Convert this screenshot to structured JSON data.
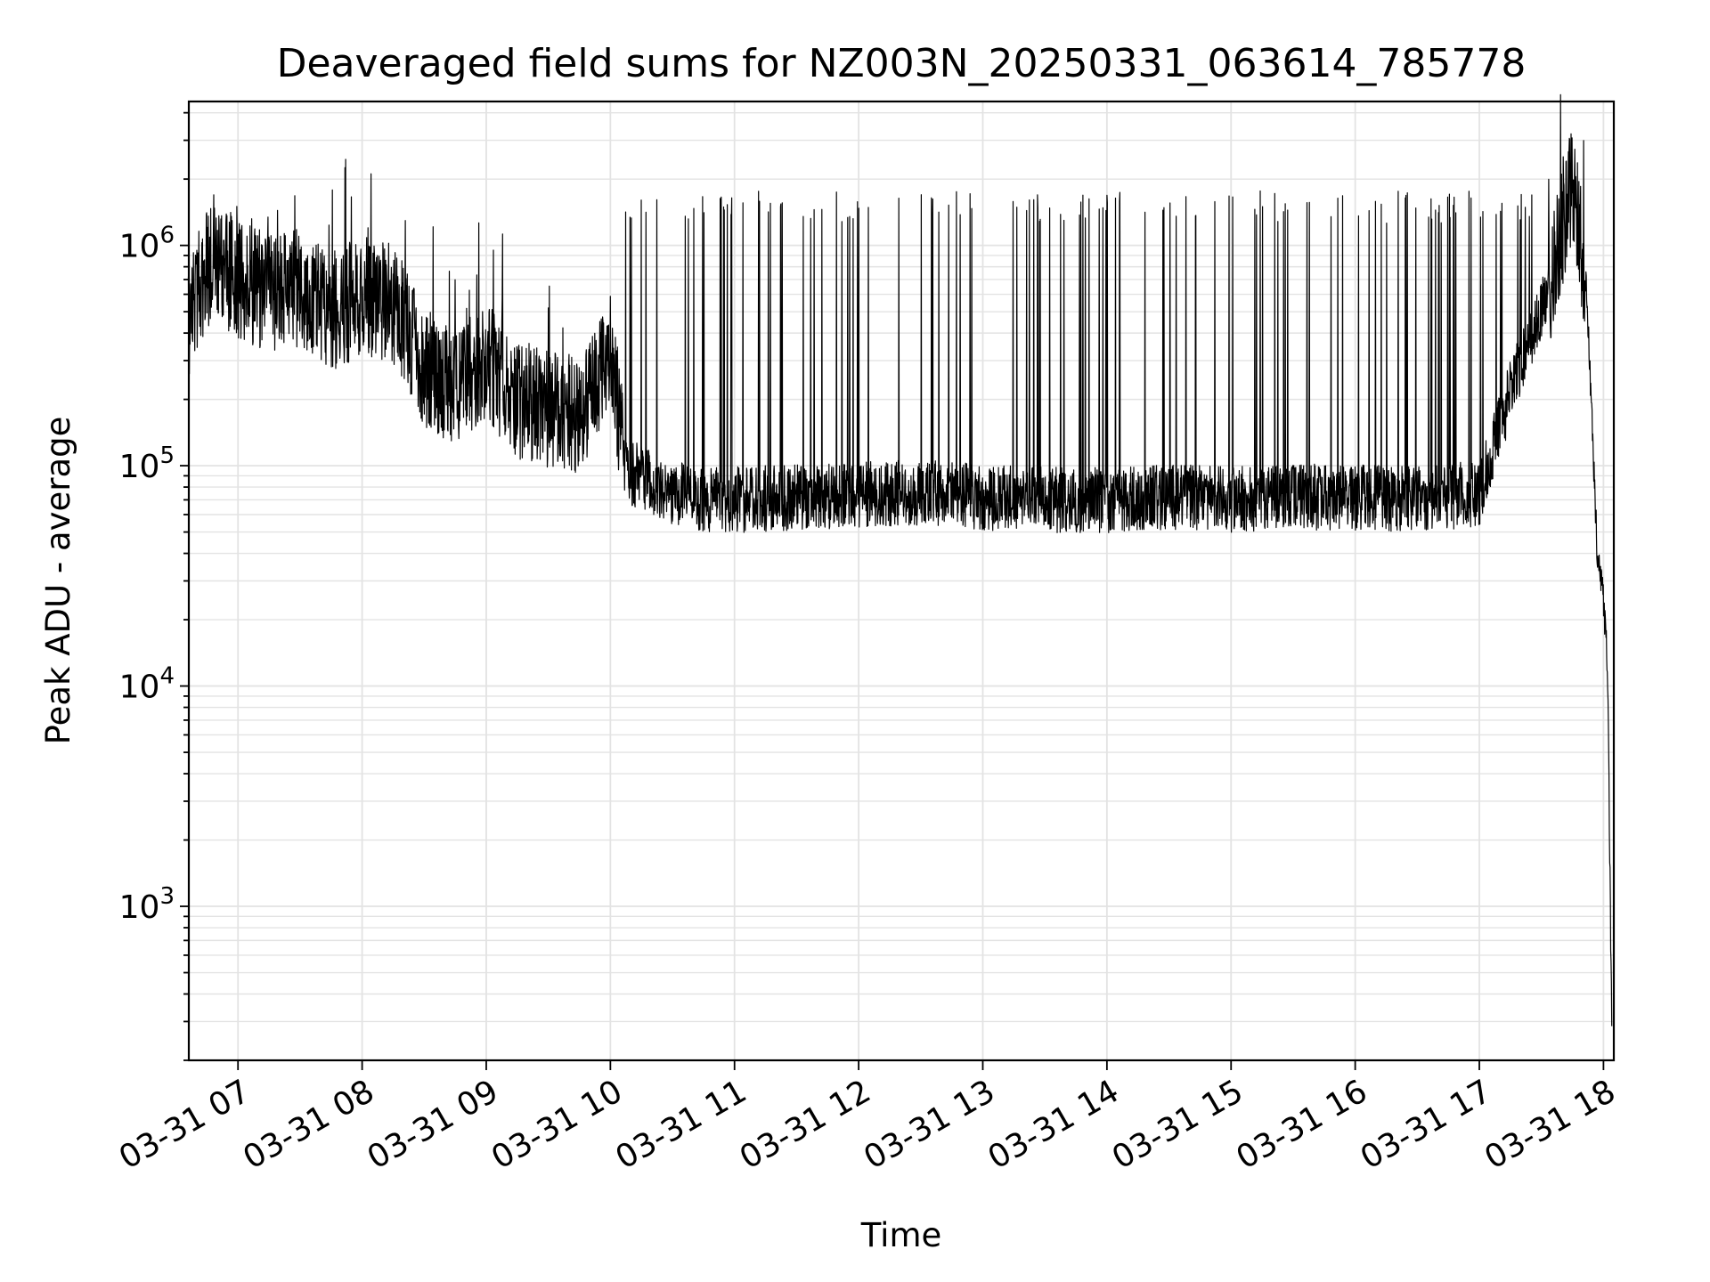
{
  "chart_data": {
    "type": "line",
    "title": "Deaveraged field sums for NZ003N_20250331_063614_785778",
    "xlabel": "Time",
    "ylabel": "Peak ADU - average",
    "x_range": [
      "2025-03-31T06:36:14",
      "2025-03-31T18:05:00"
    ],
    "y_scale": "log",
    "ylim": [
      200,
      4500000
    ],
    "grid": {
      "major": true,
      "minor_y": true
    },
    "legend": "none",
    "line_color": "#000000",
    "x_ticks": [
      {
        "value": "2025-03-31T07:00",
        "label": "03-31 07"
      },
      {
        "value": "2025-03-31T08:00",
        "label": "03-31 08"
      },
      {
        "value": "2025-03-31T09:00",
        "label": "03-31 09"
      },
      {
        "value": "2025-03-31T10:00",
        "label": "03-31 10"
      },
      {
        "value": "2025-03-31T11:00",
        "label": "03-31 11"
      },
      {
        "value": "2025-03-31T12:00",
        "label": "03-31 12"
      },
      {
        "value": "2025-03-31T13:00",
        "label": "03-31 13"
      },
      {
        "value": "2025-03-31T14:00",
        "label": "03-31 14"
      },
      {
        "value": "2025-03-31T15:00",
        "label": "03-31 15"
      },
      {
        "value": "2025-03-31T16:00",
        "label": "03-31 16"
      },
      {
        "value": "2025-03-31T17:00",
        "label": "03-31 17"
      },
      {
        "value": "2025-03-31T18:00",
        "label": "03-31 18"
      }
    ],
    "y_ticks": [
      {
        "value": 1000,
        "base": "10",
        "exp": "3"
      },
      {
        "value": 10000,
        "base": "10",
        "exp": "4"
      },
      {
        "value": 100000,
        "base": "10",
        "exp": "5"
      },
      {
        "value": 1000000,
        "base": "10",
        "exp": "6"
      }
    ],
    "series": [
      {
        "x": [
          "2025-03-31T06:36",
          "2025-03-31T06:40",
          "2025-03-31T06:48",
          "2025-03-31T07:00",
          "2025-03-31T07:15",
          "2025-03-31T07:30",
          "2025-03-31T07:45",
          "2025-03-31T08:00",
          "2025-03-31T08:15",
          "2025-03-31T08:30",
          "2025-03-31T08:45",
          "2025-03-31T09:00",
          "2025-03-31T09:15",
          "2025-03-31T09:30",
          "2025-03-31T09:45",
          "2025-03-31T10:00",
          "2025-03-31T10:08",
          "2025-03-31T10:15",
          "2025-03-31T10:30",
          "2025-03-31T10:45",
          "2025-03-31T11:00",
          "2025-03-31T11:30",
          "2025-03-31T12:00",
          "2025-03-31T12:30",
          "2025-03-31T13:00",
          "2025-03-31T13:30",
          "2025-03-31T14:00",
          "2025-03-31T14:30",
          "2025-03-31T15:00",
          "2025-03-31T15:30",
          "2025-03-31T16:00",
          "2025-03-31T16:30",
          "2025-03-31T17:00",
          "2025-03-31T17:20",
          "2025-03-31T17:35",
          "2025-03-31T17:45",
          "2025-03-31T17:52",
          "2025-03-31T17:57",
          "2025-03-31T18:00",
          "2025-03-31T18:02",
          "2025-03-31T18:04"
        ],
        "y": [
          450000,
          600000,
          900000,
          700000,
          600000,
          650000,
          500000,
          600000,
          550000,
          280000,
          220000,
          300000,
          200000,
          180000,
          170000,
          320000,
          90000,
          90000,
          75000,
          70000,
          70000,
          72000,
          74000,
          76000,
          72000,
          70000,
          70000,
          72000,
          70000,
          72000,
          72000,
          70000,
          75000,
          300000,
          700000,
          2000000,
          600000,
          40000,
          25000,
          12000,
          300
        ]
      }
    ]
  }
}
